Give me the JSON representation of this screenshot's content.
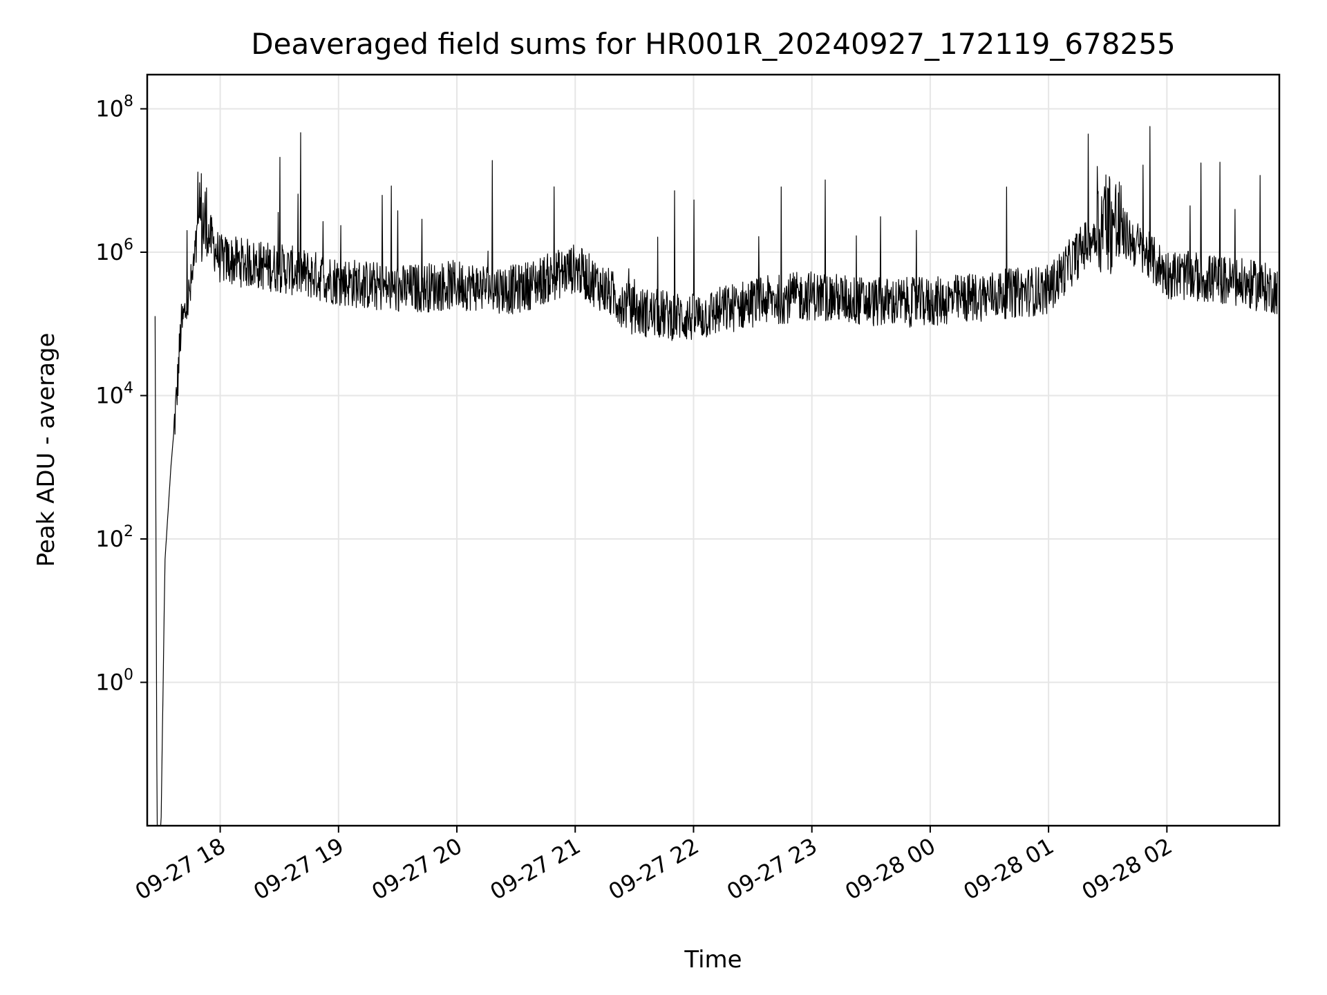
{
  "chart_data": {
    "type": "line",
    "title": "Deaveraged field sums for HR001R_20240927_172119_678255",
    "xlabel": "Time",
    "ylabel": "Peak ADU - average",
    "y_scale": "log",
    "xlim": [
      "2024-09-27 17:23",
      "2024-09-28 02:57"
    ],
    "ylim": [
      0.01,
      300000000
    ],
    "grid": true,
    "x_ticks": [
      "09-27 18",
      "09-27 19",
      "09-27 20",
      "09-27 21",
      "09-27 22",
      "09-27 23",
      "09-28 00",
      "09-28 01",
      "09-28 02"
    ],
    "y_ticks": [
      {
        "base": "10",
        "exp": "0"
      },
      {
        "base": "10",
        "exp": "2"
      },
      {
        "base": "10",
        "exp": "4"
      },
      {
        "base": "10",
        "exp": "6"
      },
      {
        "base": "10",
        "exp": "8"
      }
    ],
    "series": [
      {
        "color": "#000000",
        "x": [
          "2024-09-27 17:27",
          "2024-09-27 17:28",
          "2024-09-27 17:30",
          "2024-09-27 17:32",
          "2024-09-27 17:35",
          "2024-09-27 17:38",
          "2024-09-27 17:40",
          "2024-09-27 17:45",
          "2024-09-27 17:50",
          "2024-09-27 18:00",
          "2024-09-27 18:30",
          "2024-09-27 19:00",
          "2024-09-27 19:30",
          "2024-09-27 20:00",
          "2024-09-27 20:30",
          "2024-09-27 21:00",
          "2024-09-27 21:30",
          "2024-09-27 22:00",
          "2024-09-27 22:30",
          "2024-09-27 23:00",
          "2024-09-27 23:30",
          "2024-09-28 00:00",
          "2024-09-28 00:30",
          "2024-09-28 01:00",
          "2024-09-28 01:30",
          "2024-09-28 02:00",
          "2024-09-28 02:30",
          "2024-09-28 02:56"
        ],
        "y": [
          100000,
          0.01,
          0.01,
          50,
          1000,
          10000,
          80000,
          300000,
          3000000,
          800000,
          600000,
          400000,
          300000,
          350000,
          300000,
          600000,
          150000,
          120000,
          200000,
          250000,
          200000,
          200000,
          250000,
          300000,
          3000000,
          500000,
          400000,
          300000
        ],
        "noise_amplitude_decades": 0.35,
        "spike_max": 140000000
      }
    ]
  }
}
